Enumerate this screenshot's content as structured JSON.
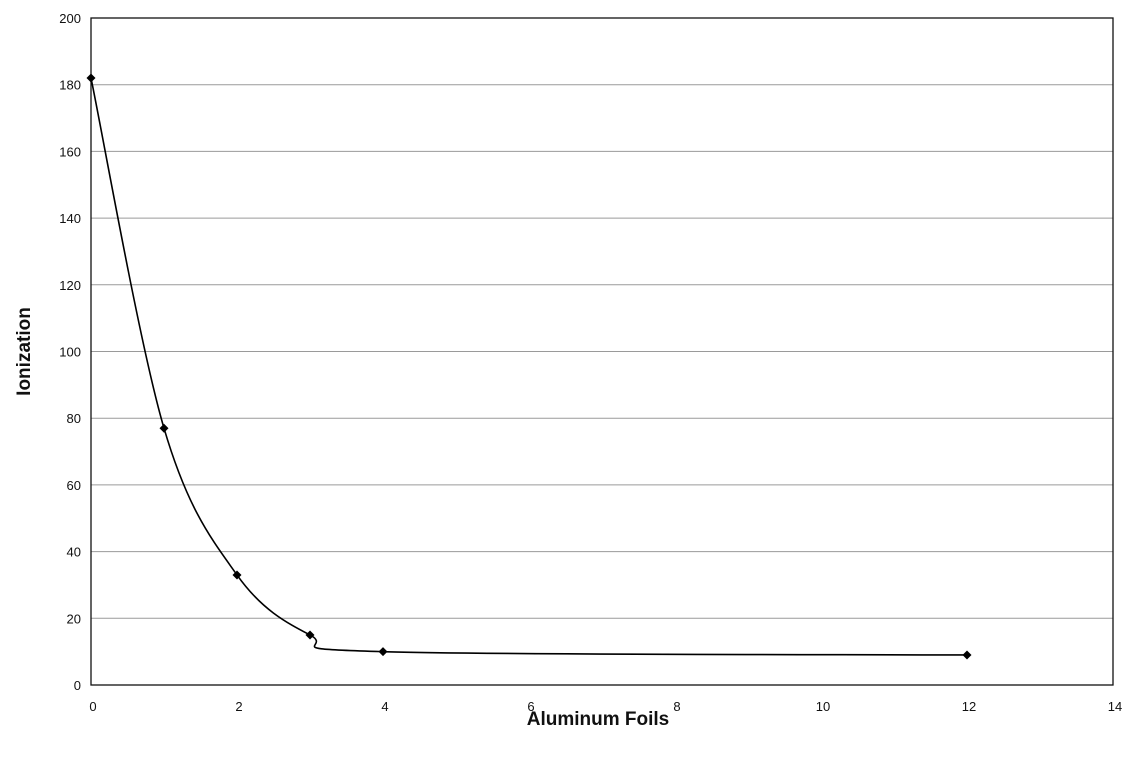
{
  "chart_data": {
    "type": "line",
    "title": "",
    "xlabel": "Aluminum Foils",
    "ylabel": "Ionization",
    "xlim": [
      0,
      14
    ],
    "ylim": [
      0,
      200
    ],
    "x_ticks": [
      0,
      2,
      4,
      6,
      8,
      10,
      12,
      14
    ],
    "y_ticks": [
      0,
      20,
      40,
      60,
      80,
      100,
      120,
      140,
      160,
      180,
      200
    ],
    "grid": "horizontal",
    "legend": "none",
    "smoothed": true,
    "line_color": "#000000",
    "marker": "diamond",
    "series": [
      {
        "x": [
          0,
          1,
          2,
          3,
          4,
          12
        ],
        "y": [
          182,
          77,
          33,
          15,
          10,
          9
        ]
      }
    ]
  }
}
